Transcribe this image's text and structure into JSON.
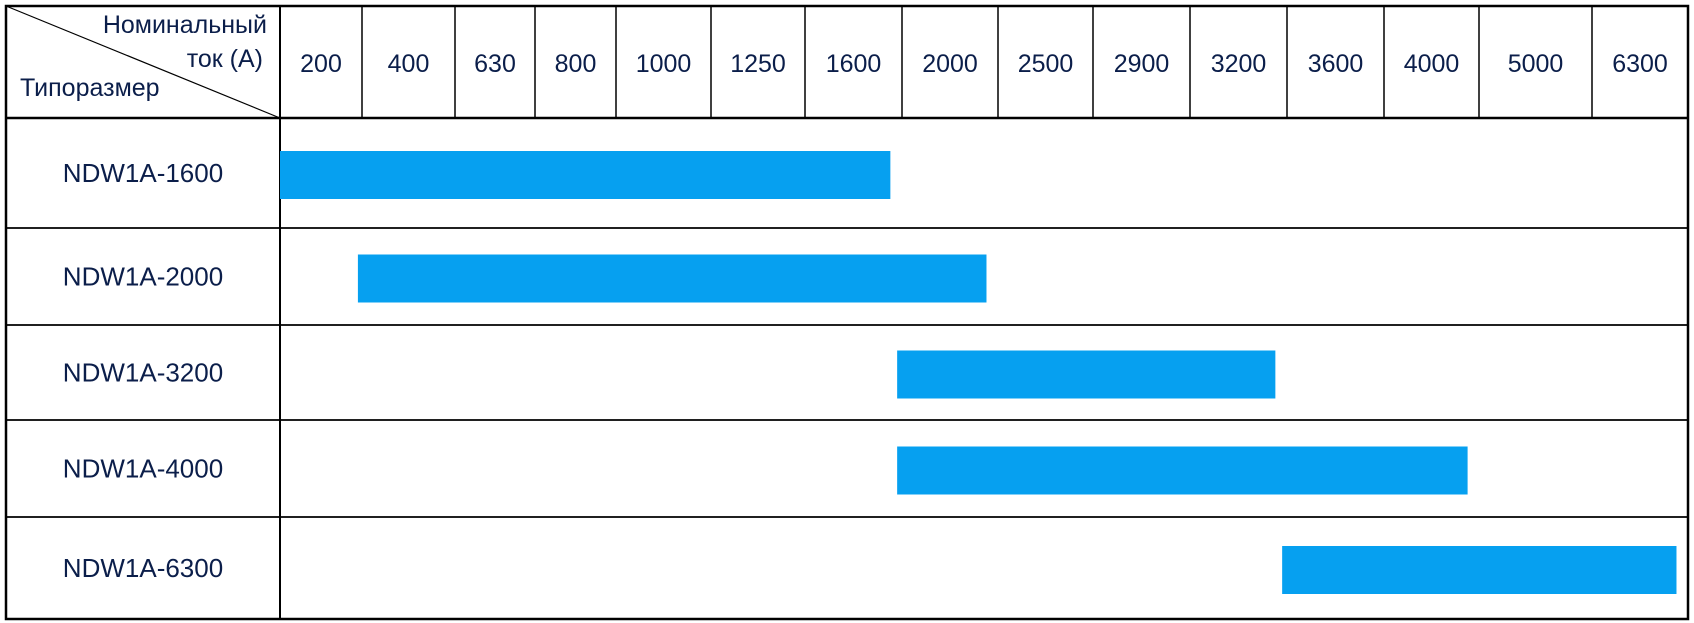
{
  "chart_data": {
    "type": "bar",
    "orientation": "horizontal-range",
    "header": {
      "current_label_line1": "Номинальный",
      "current_label_line2": "ток  (А)",
      "size_label": "Типоразмер"
    },
    "categories": [
      "200",
      "400",
      "630",
      "800",
      "1000",
      "1250",
      "1600",
      "2000",
      "2500",
      "2900",
      "3200",
      "3600",
      "4000",
      "5000",
      "6300"
    ],
    "series": [
      {
        "name": "NDW1A-1600",
        "start": "200",
        "end": "1600"
      },
      {
        "name": "NDW1A-2000",
        "start": "400",
        "end": "2000"
      },
      {
        "name": "NDW1A-3200",
        "start": "2000",
        "end": "3200"
      },
      {
        "name": "NDW1A-4000",
        "start": "2000",
        "end": "4000"
      },
      {
        "name": "NDW1A-6300",
        "start": "3600",
        "end": "6300"
      }
    ],
    "bar_color": "#06a0f0",
    "grid": true
  }
}
